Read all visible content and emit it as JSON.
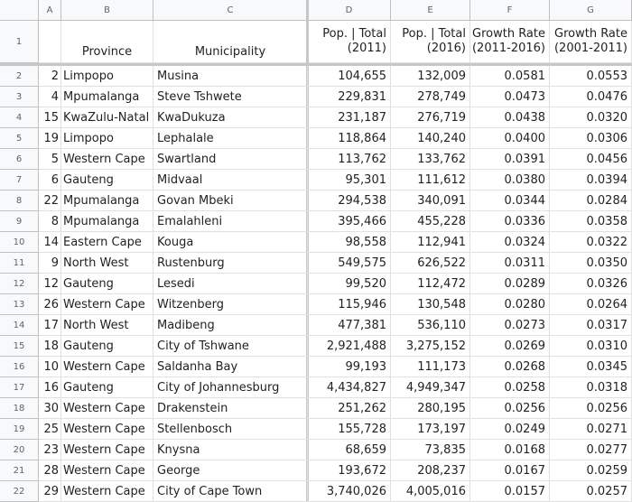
{
  "column_letters": [
    "A",
    "B",
    "C",
    "D",
    "E",
    "F",
    "G"
  ],
  "header_row": {
    "row_number": "1",
    "province": "Province",
    "municipality": "Municipality",
    "pop2011": [
      "Pop. | Total",
      "(2011)"
    ],
    "pop2016": [
      "Pop. | Total",
      "(2016)"
    ],
    "growth_2011_2016": [
      "Growth Rate",
      "(2011-2016)"
    ],
    "growth_2001_2011": [
      "Growth Rate",
      "(2001-2011)"
    ]
  },
  "rows": [
    {
      "row": "2",
      "rank": "2",
      "province": "Limpopo",
      "municipality": "Musina",
      "pop2011": "104,655",
      "pop2016": "132,009",
      "g1": "0.0581",
      "g2": "0.0553"
    },
    {
      "row": "3",
      "rank": "4",
      "province": "Mpumalanga",
      "municipality": "Steve Tshwete",
      "pop2011": "229,831",
      "pop2016": "278,749",
      "g1": "0.0473",
      "g2": "0.0476"
    },
    {
      "row": "4",
      "rank": "15",
      "province": "KwaZulu-Natal",
      "municipality": "KwaDukuza",
      "pop2011": "231,187",
      "pop2016": "276,719",
      "g1": "0.0438",
      "g2": "0.0320"
    },
    {
      "row": "5",
      "rank": "19",
      "province": "Limpopo",
      "municipality": "Lephalale",
      "pop2011": "118,864",
      "pop2016": "140,240",
      "g1": "0.0400",
      "g2": "0.0306"
    },
    {
      "row": "6",
      "rank": "5",
      "province": "Western Cape",
      "municipality": "Swartland",
      "pop2011": "113,762",
      "pop2016": "133,762",
      "g1": "0.0391",
      "g2": "0.0456"
    },
    {
      "row": "7",
      "rank": "6",
      "province": "Gauteng",
      "municipality": "Midvaal",
      "pop2011": "95,301",
      "pop2016": "111,612",
      "g1": "0.0380",
      "g2": "0.0394"
    },
    {
      "row": "8",
      "rank": "22",
      "province": "Mpumalanga",
      "municipality": "Govan Mbeki",
      "pop2011": "294,538",
      "pop2016": "340,091",
      "g1": "0.0344",
      "g2": "0.0284"
    },
    {
      "row": "9",
      "rank": "8",
      "province": "Mpumalanga",
      "municipality": "Emalahleni",
      "pop2011": "395,466",
      "pop2016": "455,228",
      "g1": "0.0336",
      "g2": "0.0358"
    },
    {
      "row": "10",
      "rank": "14",
      "province": "Eastern Cape",
      "municipality": "Kouga",
      "pop2011": "98,558",
      "pop2016": "112,941",
      "g1": "0.0324",
      "g2": "0.0322"
    },
    {
      "row": "11",
      "rank": "9",
      "province": "North West",
      "municipality": "Rustenburg",
      "pop2011": "549,575",
      "pop2016": "626,522",
      "g1": "0.0311",
      "g2": "0.0350"
    },
    {
      "row": "12",
      "rank": "12",
      "province": "Gauteng",
      "municipality": "Lesedi",
      "pop2011": "99,520",
      "pop2016": "112,472",
      "g1": "0.0289",
      "g2": "0.0326"
    },
    {
      "row": "13",
      "rank": "26",
      "province": "Western Cape",
      "municipality": "Witzenberg",
      "pop2011": "115,946",
      "pop2016": "130,548",
      "g1": "0.0280",
      "g2": "0.0264"
    },
    {
      "row": "14",
      "rank": "17",
      "province": "North West",
      "municipality": "Madibeng",
      "pop2011": "477,381",
      "pop2016": "536,110",
      "g1": "0.0273",
      "g2": "0.0317"
    },
    {
      "row": "15",
      "rank": "18",
      "province": "Gauteng",
      "municipality": "City of Tshwane",
      "pop2011": "2,921,488",
      "pop2016": "3,275,152",
      "g1": "0.0269",
      "g2": "0.0310"
    },
    {
      "row": "16",
      "rank": "10",
      "province": "Western Cape",
      "municipality": "Saldanha Bay",
      "pop2011": "99,193",
      "pop2016": "111,173",
      "g1": "0.0268",
      "g2": "0.0345"
    },
    {
      "row": "17",
      "rank": "16",
      "province": "Gauteng",
      "municipality": "City of Johannesburg",
      "pop2011": "4,434,827",
      "pop2016": "4,949,347",
      "g1": "0.0258",
      "g2": "0.0318"
    },
    {
      "row": "18",
      "rank": "30",
      "province": "Western Cape",
      "municipality": "Drakenstein",
      "pop2011": "251,262",
      "pop2016": "280,195",
      "g1": "0.0256",
      "g2": "0.0256"
    },
    {
      "row": "19",
      "rank": "25",
      "province": "Western Cape",
      "municipality": "Stellenbosch",
      "pop2011": "155,728",
      "pop2016": "173,197",
      "g1": "0.0249",
      "g2": "0.0271"
    },
    {
      "row": "20",
      "rank": "23",
      "province": "Western Cape",
      "municipality": "Knysna",
      "pop2011": "68,659",
      "pop2016": "73,835",
      "g1": "0.0168",
      "g2": "0.0277"
    },
    {
      "row": "21",
      "rank": "28",
      "province": "Western Cape",
      "municipality": "George",
      "pop2011": "193,672",
      "pop2016": "208,237",
      "g1": "0.0167",
      "g2": "0.0259"
    },
    {
      "row": "22",
      "rank": "29",
      "province": "Western Cape",
      "municipality": "City of Cape Town",
      "pop2011": "3,740,026",
      "pop2016": "4,005,016",
      "g1": "0.0157",
      "g2": "0.0257"
    }
  ]
}
